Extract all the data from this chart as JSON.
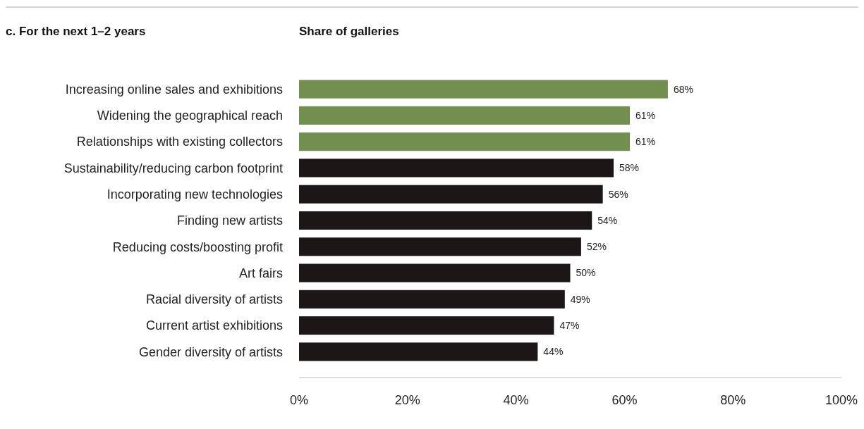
{
  "chart_data": {
    "type": "bar",
    "orientation": "horizontal",
    "title": "c. For the next 1–2 years",
    "xlabel": "Share of galleries",
    "categories": [
      "Increasing online sales and exhibitions",
      "Widening the geographical reach",
      "Relationships with existing collectors",
      "Sustainability/reducing carbon footprint",
      "Incorporating new technologies",
      "Finding new artists",
      "Reducing costs/boosting profit",
      "Art fairs",
      "Racial diversity of artists",
      "Current artist exhibitions",
      "Gender diversity of artists"
    ],
    "values": [
      68,
      61,
      61,
      58,
      56,
      54,
      52,
      50,
      49,
      47,
      44
    ],
    "value_labels": [
      "68%",
      "61%",
      "61%",
      "58%",
      "56%",
      "54%",
      "52%",
      "50%",
      "49%",
      "47%",
      "44%"
    ],
    "colors": [
      "#738f4f",
      "#738f4f",
      "#738f4f",
      "#1d1617",
      "#1d1617",
      "#1d1617",
      "#1d1617",
      "#1d1617",
      "#1d1617",
      "#1d1617",
      "#1d1617"
    ],
    "xlim": [
      0,
      100
    ],
    "xticks": [
      {
        "value": 0,
        "label": "0%"
      },
      {
        "value": 20,
        "label": "20%"
      },
      {
        "value": 40,
        "label": "40%"
      },
      {
        "value": 60,
        "label": "60%"
      },
      {
        "value": 80,
        "label": "80%"
      },
      {
        "value": 100,
        "label": "100%"
      }
    ],
    "grid": false
  }
}
